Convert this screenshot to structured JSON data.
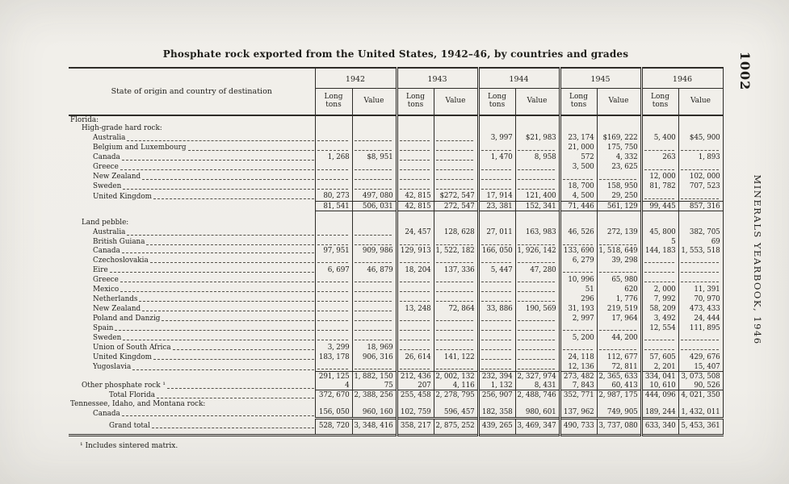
{
  "page": {
    "title": "Phosphate rock exported from the United States, 1942–46, by countries and grades",
    "page_number": "1002",
    "running_title": "MINERALS YEARBOOK, 1946",
    "footnote": "¹ Includes sintered matrix."
  },
  "table": {
    "stub_header": "State of origin and country of destination",
    "years": [
      "1942",
      "1943",
      "1944",
      "1945",
      "1946"
    ],
    "subheaders": [
      "Long tons",
      "Value"
    ],
    "rows": [
      {
        "label": "Florida:",
        "indent": 0,
        "type": "section"
      },
      {
        "label": "High-grade hard rock:",
        "indent": 1,
        "type": "section"
      },
      {
        "label": "Australia",
        "indent": 2,
        "type": "data",
        "cells": [
          "-",
          "-",
          "-",
          "-",
          "3, 997",
          "$21, 983",
          "23, 174",
          "$169, 222",
          "5, 400",
          "$45, 900"
        ]
      },
      {
        "label": "Belgium and Luxembourg",
        "indent": 2,
        "type": "data",
        "cells": [
          "-",
          "-",
          "-",
          "-",
          "-",
          "-",
          "21, 000",
          "175, 750",
          "-",
          "-"
        ]
      },
      {
        "label": "Canada",
        "indent": 2,
        "type": "data",
        "cells": [
          "1, 268",
          "$8, 951",
          "-",
          "-",
          "1, 470",
          "8, 958",
          "572",
          "4, 332",
          "263",
          "1, 893"
        ]
      },
      {
        "label": "Greece",
        "indent": 2,
        "type": "data",
        "cells": [
          "-",
          "-",
          "-",
          "-",
          "-",
          "-",
          "3, 500",
          "23, 625",
          "-",
          "-"
        ]
      },
      {
        "label": "New Zealand",
        "indent": 2,
        "type": "data",
        "cells": [
          "-",
          "-",
          "-",
          "-",
          "-",
          "-",
          "-",
          "-",
          "12, 000",
          "102, 000"
        ]
      },
      {
        "label": "Sweden",
        "indent": 2,
        "type": "data",
        "cells": [
          "-",
          "-",
          "-",
          "-",
          "-",
          "-",
          "18, 700",
          "158, 950",
          "81, 782",
          "707, 523"
        ]
      },
      {
        "label": "United Kingdom",
        "indent": 2,
        "type": "data",
        "cells": [
          "80, 273",
          "497, 080",
          "42, 815",
          "$272, 547",
          "17, 914",
          "121, 400",
          "4, 500",
          "29, 250",
          "-",
          "-"
        ]
      },
      {
        "type": "subtotal",
        "rule": "tb",
        "cells": [
          "81, 541",
          "506, 031",
          "42, 815",
          "272, 547",
          "23, 381",
          "152, 341",
          "71, 446",
          "561, 129",
          "99, 445",
          "857, 316"
        ]
      },
      {
        "type": "spacer"
      },
      {
        "label": "Land pebble:",
        "indent": 1,
        "type": "section"
      },
      {
        "label": "Australia",
        "indent": 2,
        "type": "data",
        "cells": [
          "-",
          "-",
          "24, 457",
          "128, 628",
          "27, 011",
          "163, 983",
          "46, 526",
          "272, 139",
          "45, 800",
          "382, 705"
        ]
      },
      {
        "label": "British Guiana",
        "indent": 2,
        "type": "data",
        "cells": [
          "-",
          "-",
          "-",
          "-",
          "-",
          "-",
          "-",
          "-",
          "5",
          "69"
        ]
      },
      {
        "label": "Canada",
        "indent": 2,
        "type": "data",
        "cells": [
          "97, 951",
          "909, 986",
          "129, 913",
          "1, 522, 182",
          "166, 050",
          "1, 926, 142",
          "133, 690",
          "1, 518, 649",
          "144, 183",
          "1, 553, 518"
        ]
      },
      {
        "label": "Czechoslovakia",
        "indent": 2,
        "type": "data",
        "cells": [
          "-",
          "-",
          "-",
          "-",
          "-",
          "-",
          "6, 279",
          "39, 298",
          "-",
          "-"
        ]
      },
      {
        "label": "Eire",
        "indent": 2,
        "type": "data",
        "cells": [
          "6, 697",
          "46, 879",
          "18, 204",
          "137, 336",
          "5, 447",
          "47, 280",
          "-",
          "-",
          "-",
          "-"
        ]
      },
      {
        "label": "Greece",
        "indent": 2,
        "type": "data",
        "cells": [
          "-",
          "-",
          "-",
          "-",
          "-",
          "-",
          "10, 996",
          "65, 980",
          "-",
          "-"
        ]
      },
      {
        "label": "Mexico",
        "indent": 2,
        "type": "data",
        "cells": [
          "-",
          "-",
          "-",
          "-",
          "-",
          "-",
          "51",
          "620",
          "2, 000",
          "11, 391"
        ]
      },
      {
        "label": "Netherlands",
        "indent": 2,
        "type": "data",
        "cells": [
          "-",
          "-",
          "-",
          "-",
          "-",
          "-",
          "296",
          "1, 776",
          "7, 992",
          "70, 970"
        ]
      },
      {
        "label": "New Zealand",
        "indent": 2,
        "type": "data",
        "cells": [
          "-",
          "-",
          "13, 248",
          "72, 864",
          "33, 886",
          "190, 569",
          "31, 193",
          "219, 519",
          "58, 209",
          "473, 433"
        ]
      },
      {
        "label": "Poland and Danzig",
        "indent": 2,
        "type": "data",
        "cells": [
          "-",
          "-",
          "-",
          "-",
          "-",
          "-",
          "2, 997",
          "17, 964",
          "3, 492",
          "24, 444"
        ]
      },
      {
        "label": "Spain",
        "indent": 2,
        "type": "data",
        "cells": [
          "-",
          "-",
          "-",
          "-",
          "-",
          "-",
          "-",
          "-",
          "12, 554",
          "111, 895"
        ]
      },
      {
        "label": "Sweden",
        "indent": 2,
        "type": "data",
        "cells": [
          "-",
          "-",
          "-",
          "-",
          "-",
          "-",
          "5, 200",
          "44, 200",
          "-",
          "-"
        ]
      },
      {
        "label": "Union of South Africa",
        "indent": 2,
        "type": "data",
        "cells": [
          "3, 299",
          "18, 969",
          "-",
          "-",
          "-",
          "-",
          "-",
          "-",
          "-",
          "-"
        ]
      },
      {
        "label": "United Kingdom",
        "indent": 2,
        "type": "data",
        "cells": [
          "183, 178",
          "906, 316",
          "26, 614",
          "141, 122",
          "-",
          "-",
          "24, 118",
          "112, 677",
          "57, 605",
          "429, 676"
        ]
      },
      {
        "label": "Yugoslavia",
        "indent": 2,
        "type": "data",
        "cells": [
          "-",
          "-",
          "-",
          "-",
          "-",
          "-",
          "12, 136",
          "72, 811",
          "2, 201",
          "15, 407"
        ]
      },
      {
        "type": "subtotal",
        "rule": "t",
        "cells": [
          "291, 125",
          "1, 882, 150",
          "212, 436",
          "2, 002, 132",
          "232, 394",
          "2, 327, 974",
          "273, 482",
          "2, 365, 633",
          "334, 041",
          "3, 073, 508"
        ]
      },
      {
        "label": "Other phosphate rock ¹",
        "indent": 1,
        "type": "data",
        "cells": [
          "4",
          "75",
          "207",
          "4, 116",
          "1, 132",
          "8, 431",
          "7, 843",
          "60, 413",
          "10, 610",
          "90, 526"
        ]
      },
      {
        "label": "Total Florida",
        "indent": 3,
        "type": "data",
        "rule": "t",
        "cells": [
          "372, 670",
          "2, 388, 256",
          "255, 458",
          "2, 278, 795",
          "256, 907",
          "2, 488, 746",
          "352, 771",
          "2, 987, 175",
          "444, 096",
          "4, 021, 350"
        ]
      },
      {
        "label": "Tennessee, Idaho, and Montana rock:",
        "indent": 0,
        "type": "section"
      },
      {
        "label": "Canada",
        "indent": 2,
        "type": "data",
        "cells": [
          "156, 050",
          "960, 160",
          "102, 759",
          "596, 457",
          "182, 358",
          "980, 601",
          "137, 962",
          "749, 905",
          "189, 244",
          "1, 432, 011"
        ]
      },
      {
        "label": "Grand total",
        "indent": 3,
        "type": "data",
        "rule": "dt",
        "last": true,
        "cells": [
          "528, 720",
          "3, 348, 416",
          "358, 217",
          "2, 875, 252",
          "439, 265",
          "3, 469, 347",
          "490, 733",
          "3, 737, 080",
          "633, 340",
          "5, 453, 361"
        ]
      }
    ]
  }
}
